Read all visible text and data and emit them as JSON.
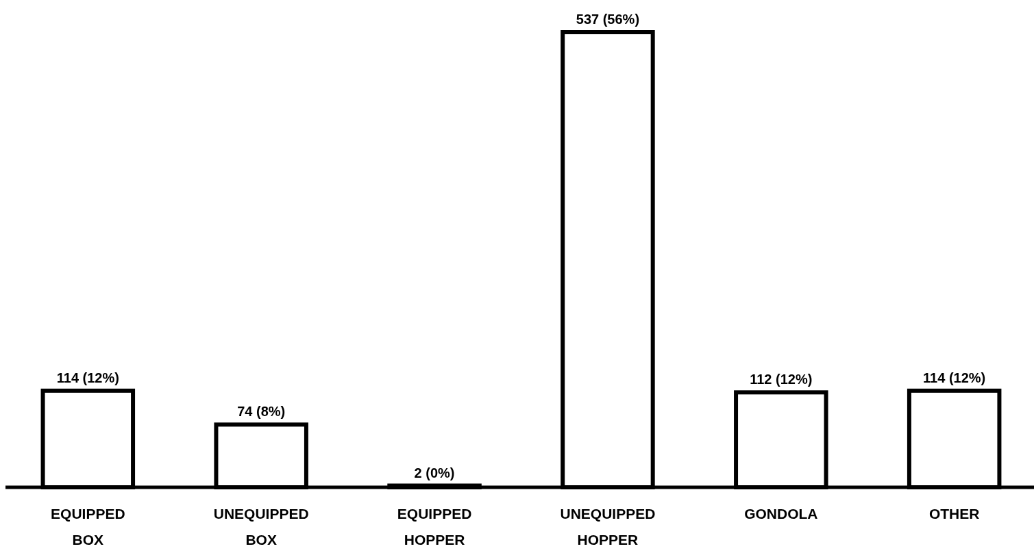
{
  "chart_data": {
    "type": "bar",
    "categories": [
      "EQUIPPED BOX",
      "UNEQUIPPED BOX",
      "EQUIPPED HOPPER",
      "UNEQUIPPED HOPPER",
      "GONDOLA",
      "OTHER"
    ],
    "values": [
      114,
      74,
      2,
      537,
      112,
      114
    ],
    "value_labels": [
      "114 (12%)",
      "74 (8%)",
      "2 (0%)",
      "537 (56%)",
      "112 (12%)",
      "114 (12%)"
    ],
    "color": "#000000"
  }
}
